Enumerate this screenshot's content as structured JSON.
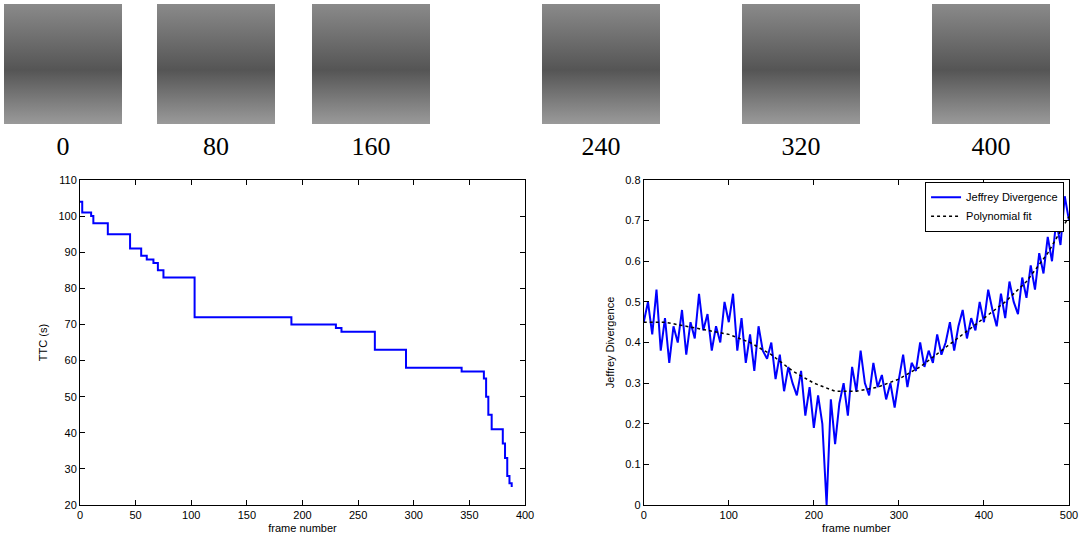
{
  "image_strip": {
    "labels": [
      "0",
      "80",
      "160",
      "240",
      "320",
      "400"
    ]
  },
  "chart_data": [
    {
      "type": "line",
      "x_label": "frame number",
      "y_label": "TTC (s)",
      "xlim": [
        0,
        400
      ],
      "xticks": [
        0,
        50,
        100,
        150,
        200,
        250,
        300,
        350,
        400
      ],
      "ylim": [
        20,
        110
      ],
      "yticks": [
        20,
        30,
        40,
        50,
        60,
        70,
        80,
        90,
        100,
        110
      ],
      "x": [
        0,
        2,
        10,
        12,
        25,
        45,
        55,
        60,
        66,
        70,
        75,
        103,
        190,
        230,
        235,
        265,
        293,
        343,
        363,
        365,
        367,
        370,
        380,
        382,
        384,
        386,
        388
      ],
      "values": [
        104,
        101,
        100,
        98,
        95,
        91,
        89,
        88,
        87,
        85,
        83,
        72,
        70,
        69,
        68,
        63,
        58,
        57,
        55,
        50,
        45,
        41,
        37,
        33,
        28,
        26,
        25
      ],
      "color": "#0000ff",
      "line_style": "step"
    },
    {
      "type": "line",
      "x_label": "frame number",
      "y_label": "Jeffrey Divergence",
      "xlim": [
        0,
        500
      ],
      "xticks": [
        0,
        100,
        200,
        300,
        400,
        500
      ],
      "ylim": [
        0,
        0.8
      ],
      "yticks": [
        0,
        0.1,
        0.2,
        0.3,
        0.4,
        0.5,
        0.6,
        0.7,
        0.8
      ],
      "legend": "northeast",
      "series": [
        {
          "name": "Jeffrey Divergence",
          "color": "#0000ff",
          "line_style": "solid",
          "x": [
            0,
            5,
            10,
            15,
            20,
            25,
            30,
            35,
            40,
            45,
            50,
            55,
            60,
            65,
            70,
            75,
            80,
            85,
            90,
            95,
            100,
            105,
            110,
            115,
            120,
            125,
            130,
            135,
            140,
            145,
            150,
            155,
            160,
            165,
            170,
            175,
            180,
            185,
            190,
            195,
            200,
            205,
            210,
            215,
            220,
            225,
            230,
            235,
            240,
            245,
            250,
            255,
            260,
            265,
            270,
            275,
            280,
            285,
            290,
            295,
            300,
            305,
            310,
            315,
            320,
            325,
            330,
            335,
            340,
            345,
            350,
            355,
            360,
            365,
            370,
            375,
            380,
            385,
            390,
            395,
            400,
            405,
            410,
            415,
            420,
            425,
            430,
            435,
            440,
            445,
            450,
            455,
            460,
            465,
            470,
            475,
            480,
            485,
            490,
            495,
            500
          ],
          "values": [
            0.45,
            0.5,
            0.42,
            0.53,
            0.38,
            0.46,
            0.35,
            0.44,
            0.4,
            0.48,
            0.37,
            0.45,
            0.41,
            0.52,
            0.43,
            0.47,
            0.38,
            0.44,
            0.4,
            0.5,
            0.45,
            0.52,
            0.38,
            0.46,
            0.35,
            0.42,
            0.33,
            0.44,
            0.38,
            0.36,
            0.4,
            0.31,
            0.37,
            0.28,
            0.34,
            0.3,
            0.27,
            0.33,
            0.22,
            0.29,
            0.19,
            0.27,
            0.2,
            0.0,
            0.26,
            0.15,
            0.25,
            0.3,
            0.22,
            0.34,
            0.28,
            0.38,
            0.3,
            0.27,
            0.35,
            0.29,
            0.32,
            0.26,
            0.3,
            0.24,
            0.31,
            0.37,
            0.29,
            0.35,
            0.33,
            0.4,
            0.34,
            0.38,
            0.35,
            0.42,
            0.37,
            0.4,
            0.45,
            0.38,
            0.44,
            0.48,
            0.41,
            0.46,
            0.43,
            0.5,
            0.45,
            0.53,
            0.48,
            0.44,
            0.52,
            0.46,
            0.55,
            0.5,
            0.47,
            0.56,
            0.51,
            0.59,
            0.53,
            0.62,
            0.57,
            0.66,
            0.6,
            0.7,
            0.64,
            0.76,
            0.7
          ]
        },
        {
          "name": "Polynomial fit",
          "color": "#000000",
          "line_style": "dotted",
          "x": [
            0,
            25,
            50,
            75,
            100,
            125,
            150,
            175,
            200,
            225,
            250,
            275,
            300,
            325,
            350,
            375,
            400,
            425,
            450,
            475,
            500
          ],
          "values": [
            0.45,
            0.45,
            0.44,
            0.43,
            0.42,
            0.4,
            0.37,
            0.33,
            0.3,
            0.28,
            0.28,
            0.29,
            0.31,
            0.34,
            0.38,
            0.42,
            0.46,
            0.5,
            0.55,
            0.62,
            0.71
          ]
        }
      ]
    }
  ]
}
